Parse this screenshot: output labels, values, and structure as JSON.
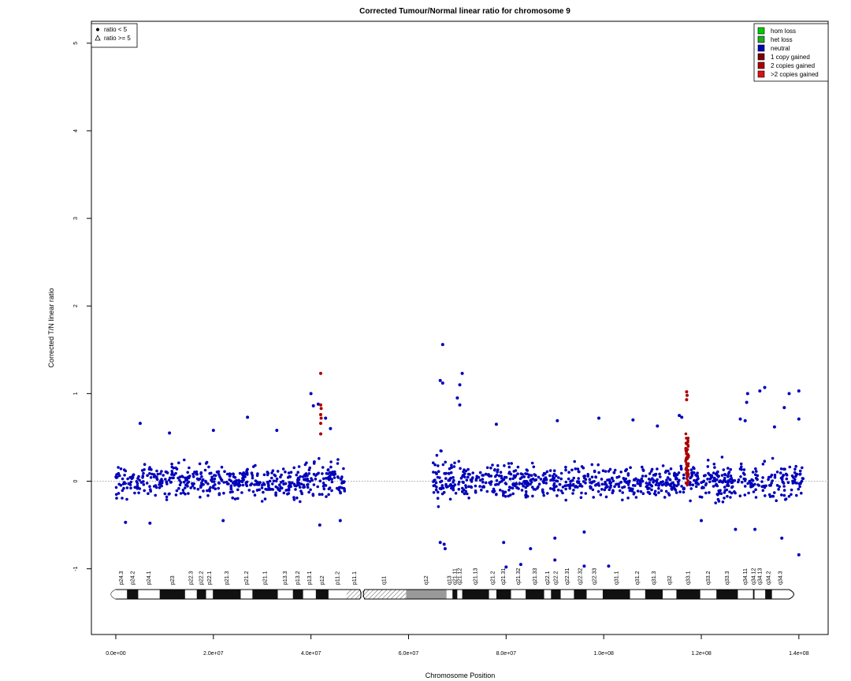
{
  "chart_data": {
    "type": "scatter",
    "title": "Corrected Tumour/Normal linear ratio for chromosome  9",
    "xlabel": "Chromosome Position",
    "ylabel": "Corrected T/N linear ratio",
    "xlim": [
      -5000000,
      146000000
    ],
    "ylim": [
      -1.75,
      5.25
    ],
    "x_ticks": [
      0,
      20000000,
      40000000,
      60000000,
      80000000,
      100000000,
      120000000,
      140000000
    ],
    "x_tick_labels": [
      "0.0e+00",
      "2.0e+07",
      "4.0e+07",
      "6.0e+07",
      "8.0e+07",
      "1.0e+08",
      "1.2e+08",
      "1.4e+08"
    ],
    "y_ticks": [
      -1,
      0,
      1,
      2,
      3,
      4,
      5
    ],
    "y_tick_labels": [
      "-1",
      "0",
      "1",
      "2",
      "3",
      "4",
      "5"
    ],
    "reference_line": {
      "y": 0,
      "style": "dotted",
      "color": "#888888"
    },
    "point_legend": {
      "placement": "top-left",
      "entries": [
        {
          "symbol": "dot",
          "label": "ratio < 5"
        },
        {
          "symbol": "triangle",
          "label": "ratio >= 5"
        }
      ]
    },
    "state_legend": {
      "placement": "top-right",
      "entries": [
        {
          "label": "hom loss",
          "color": "#00cc00"
        },
        {
          "label": "het loss",
          "color": "#22aa22"
        },
        {
          "label": "neutral",
          "color": "#0000bb"
        },
        {
          "label": "1 copy gained",
          "color": "#7a0000"
        },
        {
          "label": "2 copies gained",
          "color": "#aa0000"
        },
        {
          "label": ">2 copies gained",
          "color": "#dd1111"
        }
      ]
    },
    "series": [
      {
        "name": "neutral",
        "color": "#0000bb",
        "regions": [
          {
            "x_range": [
              0,
              40000000
            ],
            "center": 0.0,
            "spread": 0.33
          },
          {
            "x_range": [
              40000000,
              47000000
            ],
            "center": 0.0,
            "spread": 0.38
          },
          {
            "x_range": [
              65000000,
              69000000
            ],
            "center": 0.0,
            "spread": 0.5
          },
          {
            "x_range": [
              69000000,
              116500000
            ],
            "center": 0.0,
            "spread": 0.33
          },
          {
            "x_range": [
              117500000,
              141000000
            ],
            "center": 0.0,
            "spread": 0.34
          }
        ],
        "outliers": [
          {
            "x": 5000000,
            "y": 0.66
          },
          {
            "x": 11000000,
            "y": 0.55
          },
          {
            "x": 20000000,
            "y": 0.58
          },
          {
            "x": 27000000,
            "y": 0.73
          },
          {
            "x": 33000000,
            "y": 0.58
          },
          {
            "x": 40000000,
            "y": 1.0
          },
          {
            "x": 40500000,
            "y": 0.86
          },
          {
            "x": 41500000,
            "y": 0.88
          },
          {
            "x": 43000000,
            "y": 0.72
          },
          {
            "x": 44000000,
            "y": 0.6
          },
          {
            "x": 41800000,
            "y": -0.5
          },
          {
            "x": 46000000,
            "y": -0.45
          },
          {
            "x": 2000000,
            "y": -0.47
          },
          {
            "x": 7000000,
            "y": -0.48
          },
          {
            "x": 22000000,
            "y": -0.45
          },
          {
            "x": 67000000,
            "y": 1.56
          },
          {
            "x": 66500000,
            "y": 1.15
          },
          {
            "x": 67000000,
            "y": 1.12
          },
          {
            "x": 70500000,
            "y": 1.1
          },
          {
            "x": 71000000,
            "y": 1.23
          },
          {
            "x": 70000000,
            "y": 0.95
          },
          {
            "x": 70500000,
            "y": 0.87
          },
          {
            "x": 67500000,
            "y": -0.77
          },
          {
            "x": 66500000,
            "y": -0.7
          },
          {
            "x": 67300000,
            "y": -0.72
          },
          {
            "x": 79500000,
            "y": -0.7
          },
          {
            "x": 80000000,
            "y": -0.98
          },
          {
            "x": 83000000,
            "y": -0.95
          },
          {
            "x": 85000000,
            "y": -0.77
          },
          {
            "x": 90000000,
            "y": -0.65
          },
          {
            "x": 90000000,
            "y": -0.9
          },
          {
            "x": 96000000,
            "y": -0.97
          },
          {
            "x": 101000000,
            "y": -0.97
          },
          {
            "x": 96000000,
            "y": -0.58
          },
          {
            "x": 78000000,
            "y": 0.65
          },
          {
            "x": 90500000,
            "y": 0.69
          },
          {
            "x": 99000000,
            "y": 0.72
          },
          {
            "x": 106000000,
            "y": 0.7
          },
          {
            "x": 111000000,
            "y": 0.63
          },
          {
            "x": 115500000,
            "y": 0.75
          },
          {
            "x": 116000000,
            "y": 0.73
          },
          {
            "x": 128000000,
            "y": 0.71
          },
          {
            "x": 129000000,
            "y": 0.69
          },
          {
            "x": 129500000,
            "y": 1.0
          },
          {
            "x": 129300000,
            "y": 0.9
          },
          {
            "x": 132000000,
            "y": 1.03
          },
          {
            "x": 133000000,
            "y": 1.07
          },
          {
            "x": 137000000,
            "y": 0.84
          },
          {
            "x": 138000000,
            "y": 1.0
          },
          {
            "x": 140000000,
            "y": 1.03
          },
          {
            "x": 140000000,
            "y": 0.71
          },
          {
            "x": 135000000,
            "y": 0.62
          },
          {
            "x": 140000000,
            "y": -0.84
          },
          {
            "x": 136500000,
            "y": -0.65
          },
          {
            "x": 131000000,
            "y": -0.55
          },
          {
            "x": 127000000,
            "y": -0.55
          },
          {
            "x": 120000000,
            "y": -0.45
          }
        ]
      },
      {
        "name": "gained",
        "color": "#aa0000",
        "regions": [
          {
            "x_range": [
              116800000,
              117400000
            ],
            "center": 0.25,
            "spread": 0.55
          }
        ],
        "outliers": [
          {
            "x": 42000000,
            "y": 1.23
          },
          {
            "x": 42000000,
            "y": 0.87
          },
          {
            "x": 42100000,
            "y": 0.83
          },
          {
            "x": 42000000,
            "y": 0.76
          },
          {
            "x": 42100000,
            "y": 0.72
          },
          {
            "x": 42000000,
            "y": 0.66
          },
          {
            "x": 42000000,
            "y": 0.54
          },
          {
            "x": 117000000,
            "y": 1.02
          },
          {
            "x": 117100000,
            "y": 0.98
          },
          {
            "x": 117000000,
            "y": 0.93
          }
        ]
      }
    ],
    "ideogram": {
      "x_range": [
        0,
        138000000
      ],
      "centromere_x": 50500000,
      "bands": [
        {
          "label": "p24.3",
          "start": 0,
          "end": 2300000,
          "stain": "white"
        },
        {
          "label": "p24.2",
          "start": 2300000,
          "end": 4600000,
          "stain": "black"
        },
        {
          "label": "p24.1",
          "start": 4600000,
          "end": 9000000,
          "stain": "white"
        },
        {
          "label": "p23",
          "start": 9000000,
          "end": 14200000,
          "stain": "black"
        },
        {
          "label": "p22.3",
          "start": 14200000,
          "end": 16600000,
          "stain": "white"
        },
        {
          "label": "p22.2",
          "start": 16600000,
          "end": 18500000,
          "stain": "black"
        },
        {
          "label": "p22.1",
          "start": 18500000,
          "end": 19900000,
          "stain": "white"
        },
        {
          "label": "p21.3",
          "start": 19900000,
          "end": 25600000,
          "stain": "black"
        },
        {
          "label": "p21.2",
          "start": 25600000,
          "end": 28000000,
          "stain": "white"
        },
        {
          "label": "p21.1",
          "start": 28000000,
          "end": 33200000,
          "stain": "black"
        },
        {
          "label": "p13.3",
          "start": 33200000,
          "end": 36300000,
          "stain": "white"
        },
        {
          "label": "p13.2",
          "start": 36300000,
          "end": 38400000,
          "stain": "black"
        },
        {
          "label": "p13.1",
          "start": 38400000,
          "end": 41000000,
          "stain": "white"
        },
        {
          "label": "p12",
          "start": 41000000,
          "end": 43600000,
          "stain": "black"
        },
        {
          "label": "p11.2",
          "start": 43600000,
          "end": 47300000,
          "stain": "white"
        },
        {
          "label": "p11.1",
          "start": 47300000,
          "end": 50500000,
          "stain": "hatched"
        },
        {
          "label": "q11",
          "start": 50500000,
          "end": 59500000,
          "stain": "hatched"
        },
        {
          "label": "q12",
          "start": 59500000,
          "end": 67800000,
          "stain": "gray"
        },
        {
          "label": "q13",
          "start": 67800000,
          "end": 69000000,
          "stain": "white"
        },
        {
          "label": "q21.11",
          "start": 69000000,
          "end": 70000000,
          "stain": "black"
        },
        {
          "label": "q21.12",
          "start": 70000000,
          "end": 71000000,
          "stain": "white"
        },
        {
          "label": "q21.13",
          "start": 71000000,
          "end": 76500000,
          "stain": "black"
        },
        {
          "label": "q21.2",
          "start": 76500000,
          "end": 78000000,
          "stain": "white"
        },
        {
          "label": "q21.31",
          "start": 78000000,
          "end": 81000000,
          "stain": "black"
        },
        {
          "label": "q21.32",
          "start": 81000000,
          "end": 84000000,
          "stain": "white"
        },
        {
          "label": "q21.33",
          "start": 84000000,
          "end": 87800000,
          "stain": "black"
        },
        {
          "label": "q22.1",
          "start": 87800000,
          "end": 89200000,
          "stain": "white"
        },
        {
          "label": "q22.2",
          "start": 89200000,
          "end": 91200000,
          "stain": "black"
        },
        {
          "label": "q22.31",
          "start": 91200000,
          "end": 93900000,
          "stain": "white"
        },
        {
          "label": "q22.32",
          "start": 93900000,
          "end": 96500000,
          "stain": "black"
        },
        {
          "label": "q22.33",
          "start": 96500000,
          "end": 99800000,
          "stain": "white"
        },
        {
          "label": "q31.1",
          "start": 99800000,
          "end": 105400000,
          "stain": "black"
        },
        {
          "label": "q31.2",
          "start": 105400000,
          "end": 108500000,
          "stain": "white"
        },
        {
          "label": "q31.3",
          "start": 108500000,
          "end": 112100000,
          "stain": "black"
        },
        {
          "label": "q32",
          "start": 112100000,
          "end": 114900000,
          "stain": "white"
        },
        {
          "label": "q33.1",
          "start": 114900000,
          "end": 119800000,
          "stain": "black"
        },
        {
          "label": "q33.2",
          "start": 119800000,
          "end": 123100000,
          "stain": "white"
        },
        {
          "label": "q33.3",
          "start": 123100000,
          "end": 127500000,
          "stain": "black"
        },
        {
          "label": "q34.11",
          "start": 127500000,
          "end": 130600000,
          "stain": "white"
        },
        {
          "label": "q34.12",
          "start": 130600000,
          "end": 130900000,
          "stain": "black"
        },
        {
          "label": "q34.13",
          "start": 130900000,
          "end": 133100000,
          "stain": "white"
        },
        {
          "label": "q34.2",
          "start": 133100000,
          "end": 134500000,
          "stain": "black"
        },
        {
          "label": "q34.3",
          "start": 134500000,
          "end": 138000000,
          "stain": "white"
        }
      ]
    }
  }
}
